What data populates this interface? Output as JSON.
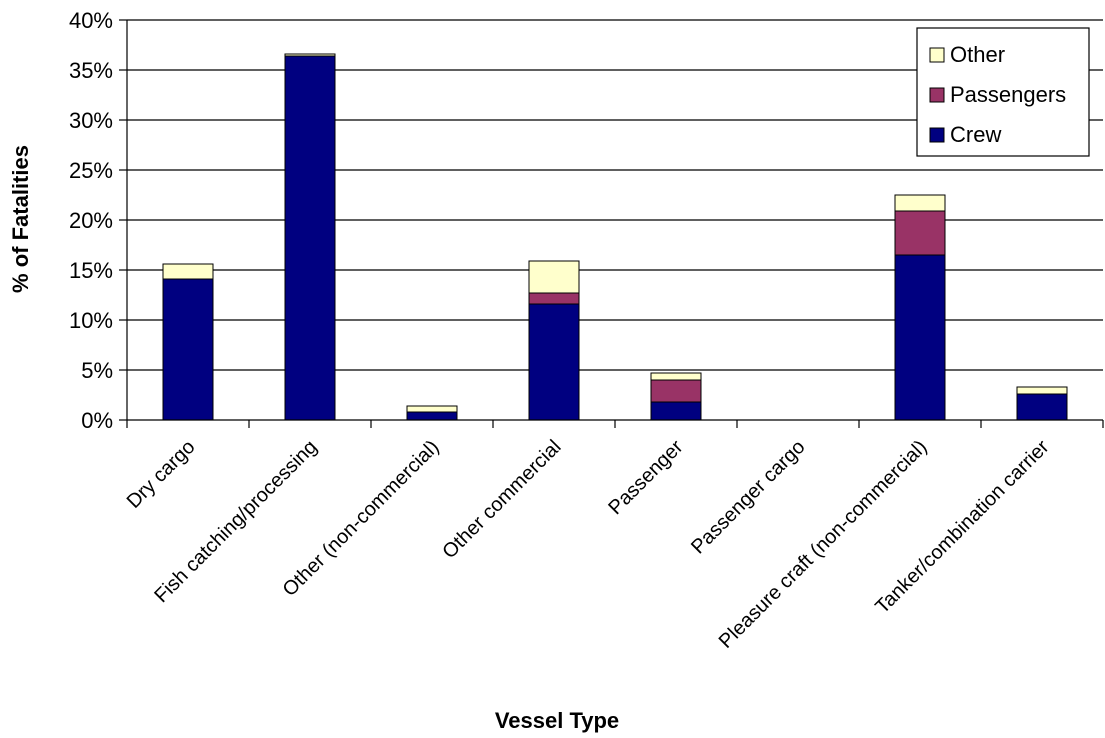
{
  "chart_data": {
    "type": "bar",
    "stacked": true,
    "title": "",
    "xlabel": "Vessel Type",
    "ylabel": "% of Fatalities",
    "ylim": [
      0,
      40
    ],
    "ytick_step": 5,
    "ytick_labels": [
      "0%",
      "5%",
      "10%",
      "15%",
      "20%",
      "25%",
      "30%",
      "35%",
      "40%"
    ],
    "grid": true,
    "legend_position": "top-right",
    "categories": [
      "Dry cargo",
      "Fish catching/processing",
      "Other (non-commercial)",
      "Other commercial",
      "Passenger",
      "Passenger cargo",
      "Pleasure craft (non-commercial)",
      "Tanker/combination carrier"
    ],
    "series": [
      {
        "name": "Crew",
        "color": "#000080",
        "values": [
          14.1,
          36.4,
          0.8,
          11.6,
          1.8,
          0,
          16.5,
          2.6
        ]
      },
      {
        "name": "Passengers",
        "color": "#993366",
        "values": [
          0,
          0,
          0,
          1.1,
          2.2,
          0,
          4.4,
          0
        ]
      },
      {
        "name": "Other",
        "color": "#FFFFCC",
        "values": [
          1.5,
          0.2,
          0.6,
          3.2,
          0.7,
          0,
          1.6,
          0.7
        ]
      }
    ],
    "legend_order": [
      "Other",
      "Passengers",
      "Crew"
    ]
  }
}
